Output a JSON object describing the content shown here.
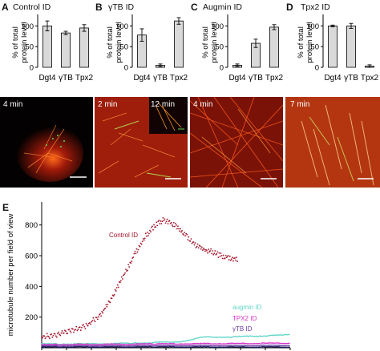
{
  "colors": {
    "bar_fill": "#d9d9d9",
    "control": "#a3122a",
    "augmin": "#5fd6c6",
    "tpx2": "#d633c9",
    "gammatb": "#6a3fa0",
    "dgt4": "#1c1c5c",
    "micro_dark": "#1a0503",
    "micro_red": "#c4260f",
    "micro_orange": "#ff9a2a",
    "micro_green": "#5dd35a"
  },
  "panels": [
    {
      "letter": "A",
      "title": "Control ID",
      "time": "4 min",
      "time2": ""
    },
    {
      "letter": "B",
      "title": "γTB ID",
      "time": "2 min",
      "time2": "12 min"
    },
    {
      "letter": "C",
      "title": "Augmin ID",
      "time": "4 min",
      "time2": ""
    },
    {
      "letter": "D",
      "title": "Tpx2 ID",
      "time": "7 min",
      "time2": ""
    }
  ],
  "bar_charts": {
    "ylabel": "% of total protein level",
    "ylabel_line1": "% of total",
    "ylabel_line2": "protein level",
    "categories": [
      "Dgt4",
      "γTB",
      "Tpx2"
    ],
    "ticks": [
      "100",
      "50",
      "0"
    ]
  },
  "chart_data": [
    {
      "type": "bar",
      "panel": "A",
      "categories": [
        "Dgt4",
        "γTB",
        "Tpx2"
      ],
      "values": [
        100,
        83,
        95
      ],
      "errors": [
        12,
        4,
        8
      ],
      "ylim": [
        0,
        120
      ],
      "ylabel": "% of total protein level"
    },
    {
      "type": "bar",
      "panel": "B",
      "categories": [
        "Dgt4",
        "γTB",
        "Tpx2"
      ],
      "values": [
        78,
        5,
        112
      ],
      "errors": [
        15,
        3,
        8
      ],
      "ylim": [
        0,
        120
      ],
      "ylabel": "% of total protein level"
    },
    {
      "type": "bar",
      "panel": "C",
      "categories": [
        "Dgt4",
        "γTB",
        "Tpx2"
      ],
      "values": [
        5,
        58,
        97
      ],
      "errors": [
        3,
        10,
        6
      ],
      "ylim": [
        0,
        120
      ],
      "ylabel": "% of total protein level"
    },
    {
      "type": "bar",
      "panel": "D",
      "categories": [
        "Dgt4",
        "γTB",
        "Tpx2"
      ],
      "values": [
        100,
        100,
        3
      ],
      "errors": [
        2,
        6,
        3
      ],
      "ylim": [
        0,
        120
      ],
      "ylabel": "% of total protein level"
    },
    {
      "type": "scatter",
      "panel": "E",
      "ylabel": "microtubule number per field of view",
      "yticks": [
        200,
        400,
        600,
        800
      ],
      "ylim": [
        0,
        950
      ],
      "x_unit": "frame",
      "series": [
        {
          "name": "Control ID",
          "color": "#a3122a",
          "x": [
            0,
            10,
            20,
            30,
            40,
            50,
            55,
            60,
            65,
            70,
            75,
            80,
            85,
            90,
            95,
            100,
            105,
            110,
            115,
            120,
            125,
            130,
            135,
            140,
            145,
            150,
            155,
            160,
            165,
            170
          ],
          "y": [
            70,
            80,
            100,
            120,
            150,
            210,
            260,
            320,
            390,
            460,
            530,
            600,
            670,
            730,
            770,
            810,
            830,
            820,
            800,
            770,
            730,
            690,
            660,
            640,
            630,
            615,
            600,
            590,
            580,
            570
          ]
        },
        {
          "name": "augmin ID",
          "color": "#5fd6c6",
          "x": [
            0,
            40,
            80,
            120,
            130,
            140,
            160,
            180,
            200,
            215
          ],
          "y": [
            25,
            25,
            30,
            40,
            55,
            70,
            70,
            75,
            80,
            85
          ]
        },
        {
          "name": "TPX2 ID",
          "color": "#d633c9",
          "x": [
            0,
            100,
            215
          ],
          "y": [
            20,
            25,
            30
          ]
        },
        {
          "name": "γTB ID",
          "color": "#6a3fa0",
          "x": [
            0,
            100,
            215
          ],
          "y": [
            12,
            14,
            15
          ]
        },
        {
          "name": "",
          "color": "#1c1c5c",
          "x": [
            0,
            100,
            215
          ],
          "y": [
            5,
            5,
            5
          ]
        }
      ]
    }
  ],
  "panel_e": {
    "letter": "E",
    "control_label": "Control ID",
    "augmin_label": "augmin ID",
    "tpx2_label": "TPX2 ID",
    "gtb_label": "γTB ID"
  }
}
